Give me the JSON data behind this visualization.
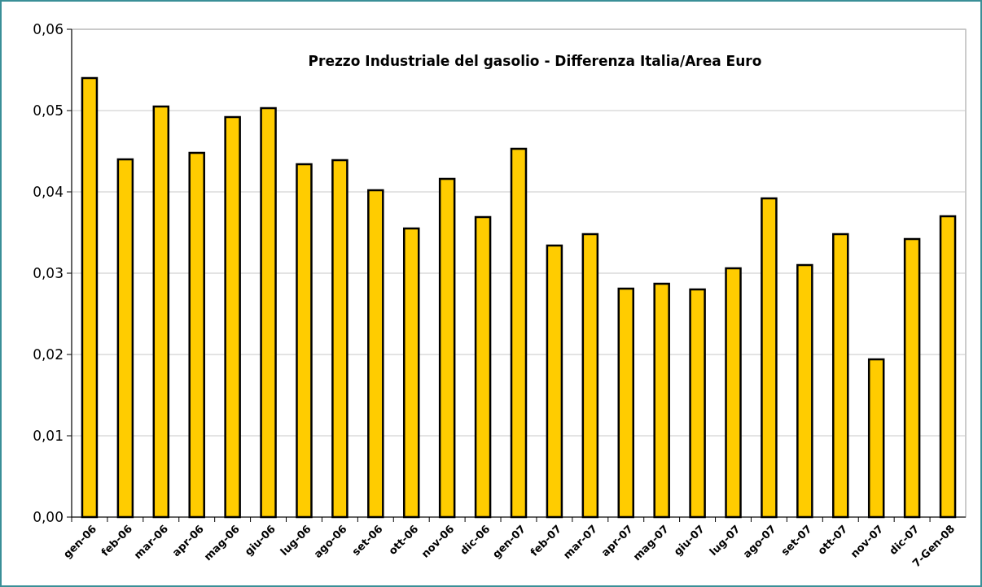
{
  "chart_data": {
    "type": "bar",
    "title": "Prezzo Industriale del gasolio - Differenza Italia/Area Euro",
    "categories": [
      "gen-06",
      "feb-06",
      "mar-06",
      "apr-06",
      "mag-06",
      "giu-06",
      "lug-06",
      "ago-06",
      "set-06",
      "ott-06",
      "nov-06",
      "dic-06",
      "gen-07",
      "feb-07",
      "mar-07",
      "apr-07",
      "mag-07",
      "giu-07",
      "lug-07",
      "ago-07",
      "set-07",
      "ott-07",
      "nov-07",
      "dic-07",
      "7-Gen-08"
    ],
    "values": [
      0.054,
      0.044,
      0.0505,
      0.0448,
      0.0492,
      0.0503,
      0.0434,
      0.0439,
      0.0402,
      0.0355,
      0.0416,
      0.0369,
      0.0453,
      0.0334,
      0.0348,
      0.0281,
      0.0287,
      0.028,
      0.0306,
      0.0392,
      0.031,
      0.0348,
      0.0194,
      0.0342,
      0.037
    ],
    "color": "#ffcc00",
    "ylim": [
      0,
      0.06
    ],
    "yticks": [
      {
        "value": 0,
        "label": "0,00"
      },
      {
        "value": 0.01,
        "label": "0,01"
      },
      {
        "value": 0.02,
        "label": "0,02"
      },
      {
        "value": 0.03,
        "label": "0,03"
      },
      {
        "value": 0.04,
        "label": "0,04"
      },
      {
        "value": 0.05,
        "label": "0,05"
      },
      {
        "value": 0.06,
        "label": "0,06"
      }
    ],
    "grid": "y"
  }
}
